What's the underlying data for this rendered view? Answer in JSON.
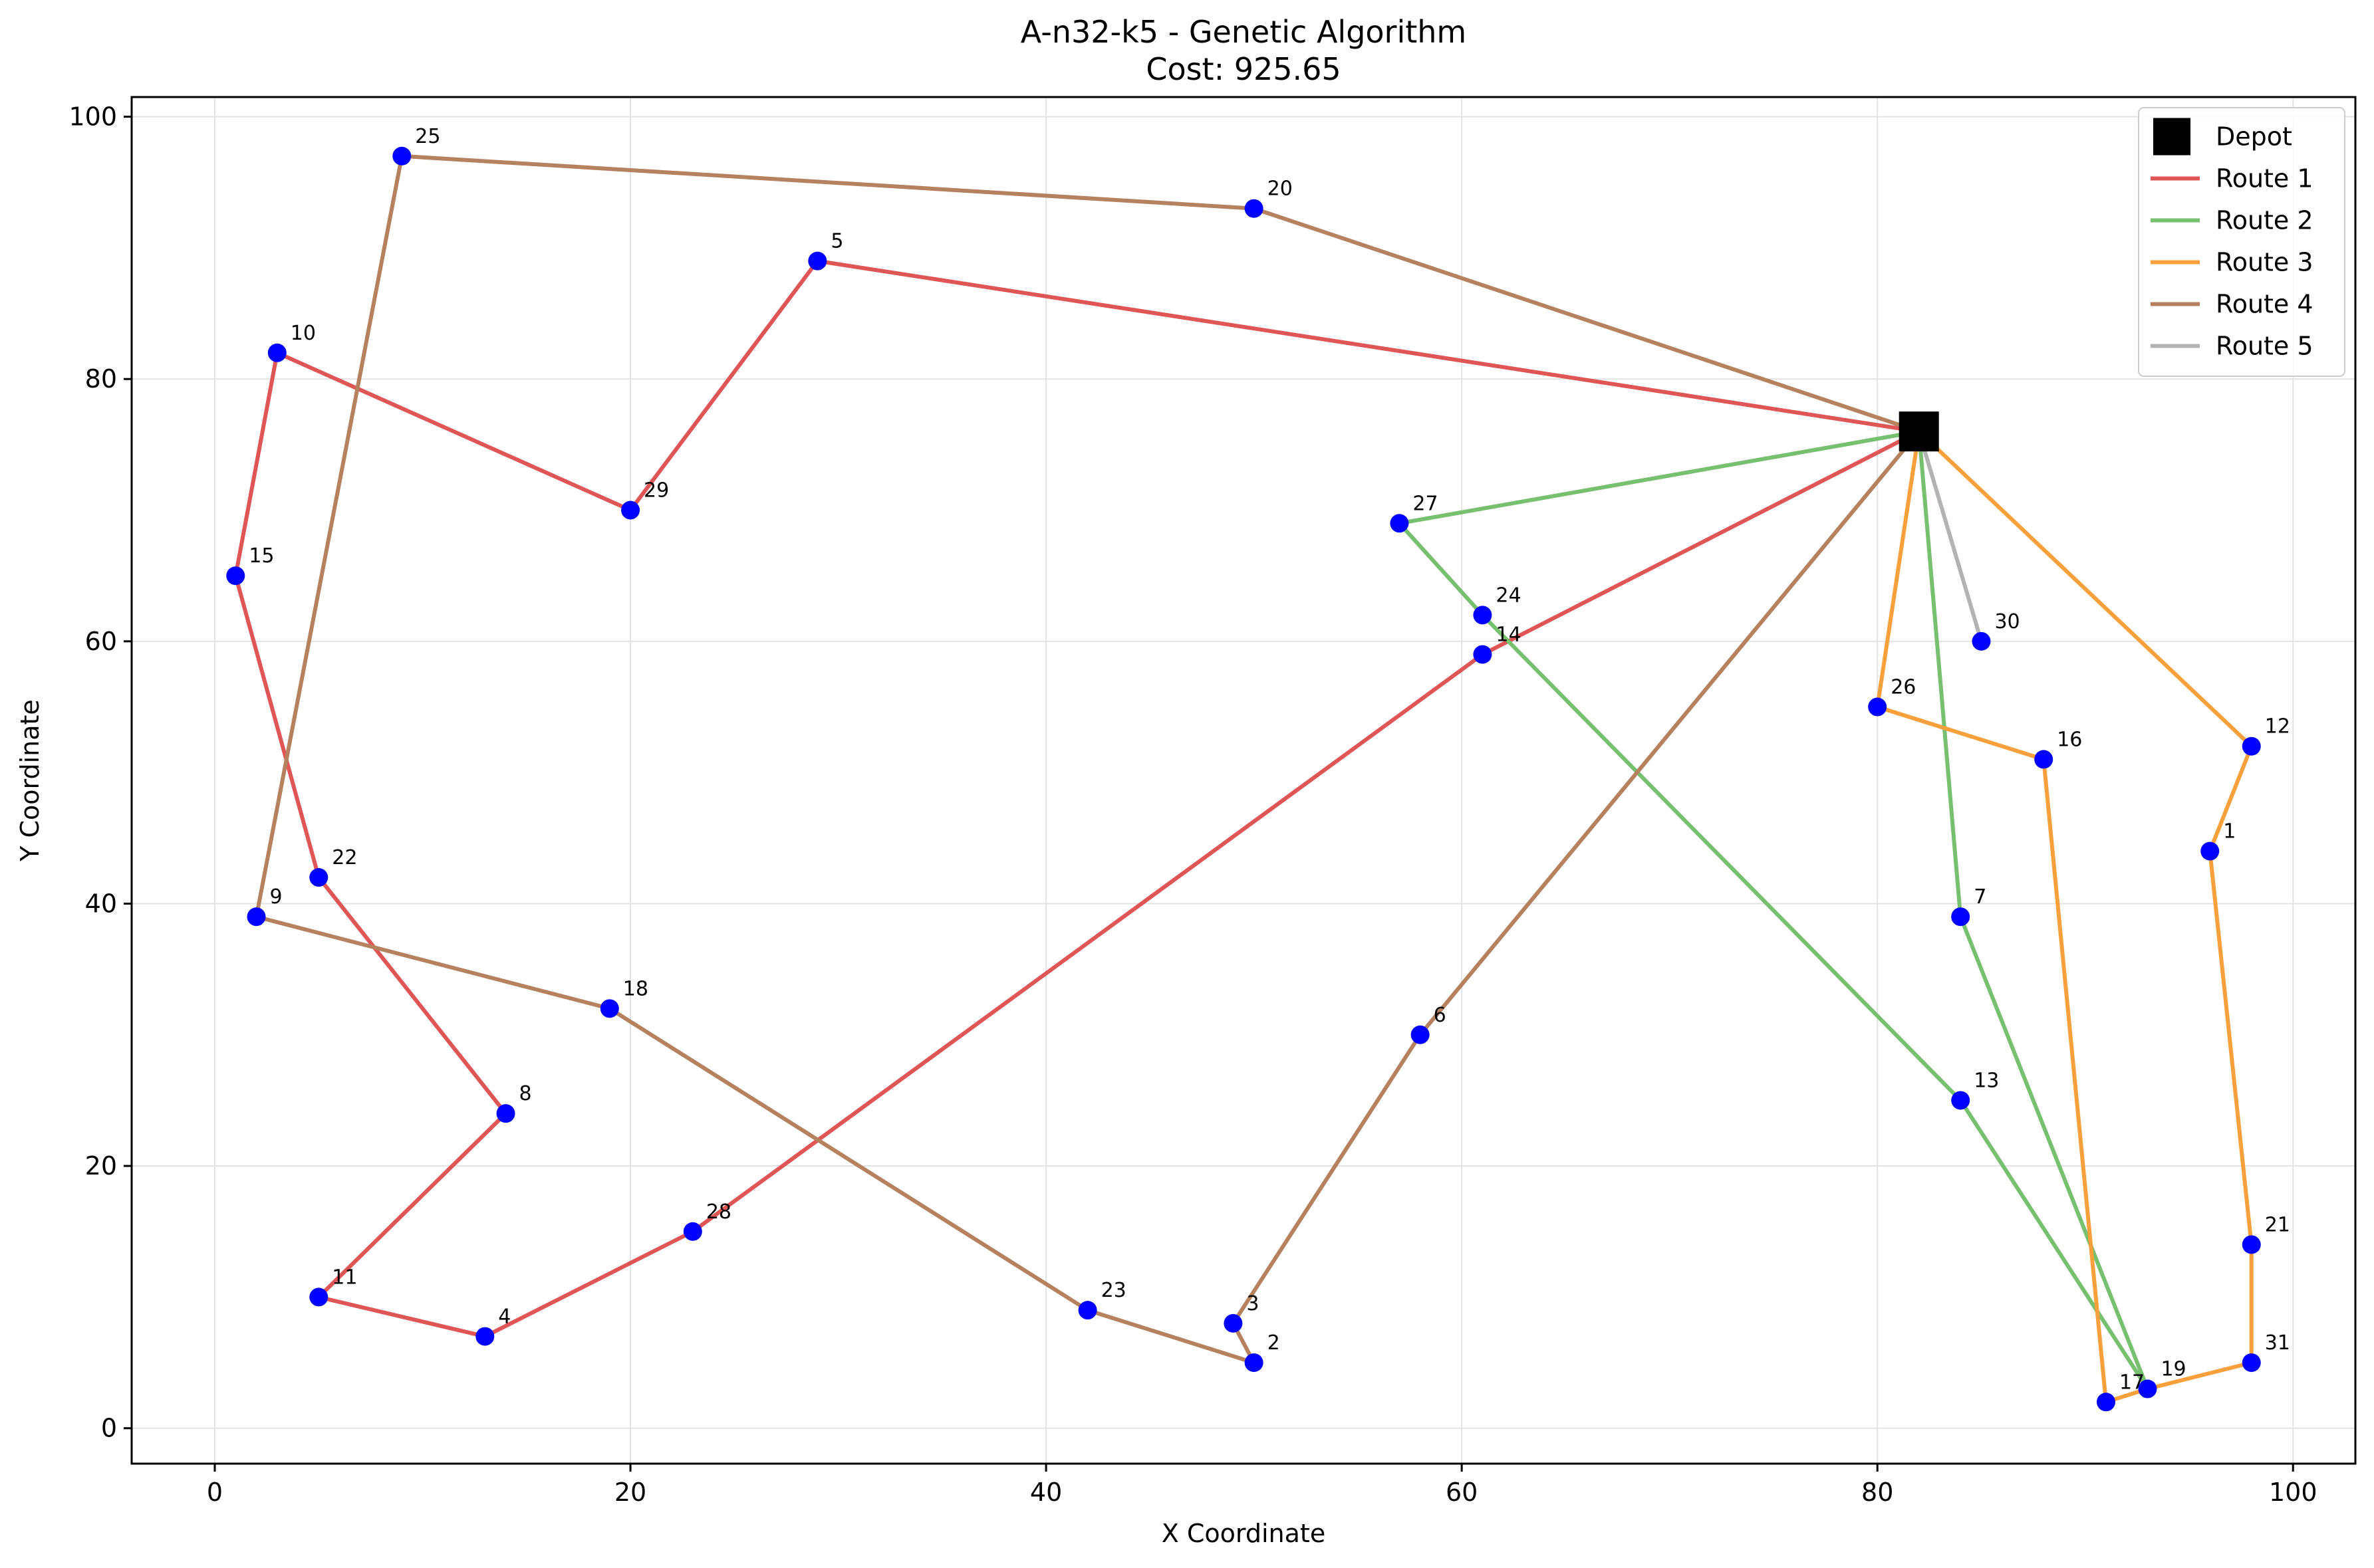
{
  "chart_data": {
    "type": "scatter",
    "title": "A-n32-k5 - Genetic Algorithm",
    "subtitle": "Cost: 925.65",
    "xlabel": "X Coordinate",
    "ylabel": "Y Coordinate",
    "xlim": [
      -4,
      103
    ],
    "ylim": [
      -2.7,
      101.5
    ],
    "xticks": [
      0,
      20,
      40,
      60,
      80,
      100
    ],
    "yticks": [
      0,
      20,
      40,
      60,
      80,
      100
    ],
    "grid": true,
    "legend_position": "top-right",
    "depot": {
      "label": "Depot",
      "x": 82,
      "y": 76,
      "color": "#000000"
    },
    "customers": [
      {
        "id": "1",
        "x": 96,
        "y": 44
      },
      {
        "id": "2",
        "x": 50,
        "y": 5
      },
      {
        "id": "3",
        "x": 49,
        "y": 8
      },
      {
        "id": "4",
        "x": 13,
        "y": 7
      },
      {
        "id": "5",
        "x": 29,
        "y": 89
      },
      {
        "id": "6",
        "x": 58,
        "y": 30
      },
      {
        "id": "7",
        "x": 84,
        "y": 39
      },
      {
        "id": "8",
        "x": 14,
        "y": 24
      },
      {
        "id": "9",
        "x": 2,
        "y": 39
      },
      {
        "id": "10",
        "x": 3,
        "y": 82
      },
      {
        "id": "11",
        "x": 5,
        "y": 10
      },
      {
        "id": "12",
        "x": 98,
        "y": 52
      },
      {
        "id": "13",
        "x": 84,
        "y": 25
      },
      {
        "id": "14",
        "x": 61,
        "y": 59
      },
      {
        "id": "15",
        "x": 1,
        "y": 65
      },
      {
        "id": "16",
        "x": 88,
        "y": 51
      },
      {
        "id": "17",
        "x": 91,
        "y": 2
      },
      {
        "id": "18",
        "x": 19,
        "y": 32
      },
      {
        "id": "19",
        "x": 93,
        "y": 3
      },
      {
        "id": "20",
        "x": 50,
        "y": 93
      },
      {
        "id": "21",
        "x": 98,
        "y": 14
      },
      {
        "id": "22",
        "x": 5,
        "y": 42
      },
      {
        "id": "23",
        "x": 42,
        "y": 9
      },
      {
        "id": "24",
        "x": 61,
        "y": 62
      },
      {
        "id": "25",
        "x": 9,
        "y": 97
      },
      {
        "id": "26",
        "x": 80,
        "y": 55
      },
      {
        "id": "27",
        "x": 57,
        "y": 69
      },
      {
        "id": "28",
        "x": 23,
        "y": 15
      },
      {
        "id": "29",
        "x": 20,
        "y": 70
      },
      {
        "id": "30",
        "x": 85,
        "y": 60
      },
      {
        "id": "31",
        "x": 98,
        "y": 5
      }
    ],
    "customer_color": "#0000ff",
    "series": [
      {
        "name": "Route 1",
        "color": "#e05555",
        "stops": [
          "14",
          "28",
          "4",
          "11",
          "8",
          "22",
          "15",
          "10",
          "29",
          "5"
        ]
      },
      {
        "name": "Route 2",
        "color": "#77c06f",
        "stops": [
          "27",
          "24",
          "13",
          "19",
          "7"
        ]
      },
      {
        "name": "Route 3",
        "color": "#f8a03c",
        "stops": [
          "26",
          "16",
          "17",
          "19",
          "31",
          "21",
          "1",
          "12"
        ]
      },
      {
        "name": "Route 4",
        "color": "#b5815f",
        "stops": [
          "6",
          "3",
          "2",
          "23",
          "18",
          "9",
          "25",
          "20"
        ]
      },
      {
        "name": "Route 5",
        "color": "#b3b3b3",
        "stops": [
          "30"
        ]
      }
    ]
  }
}
